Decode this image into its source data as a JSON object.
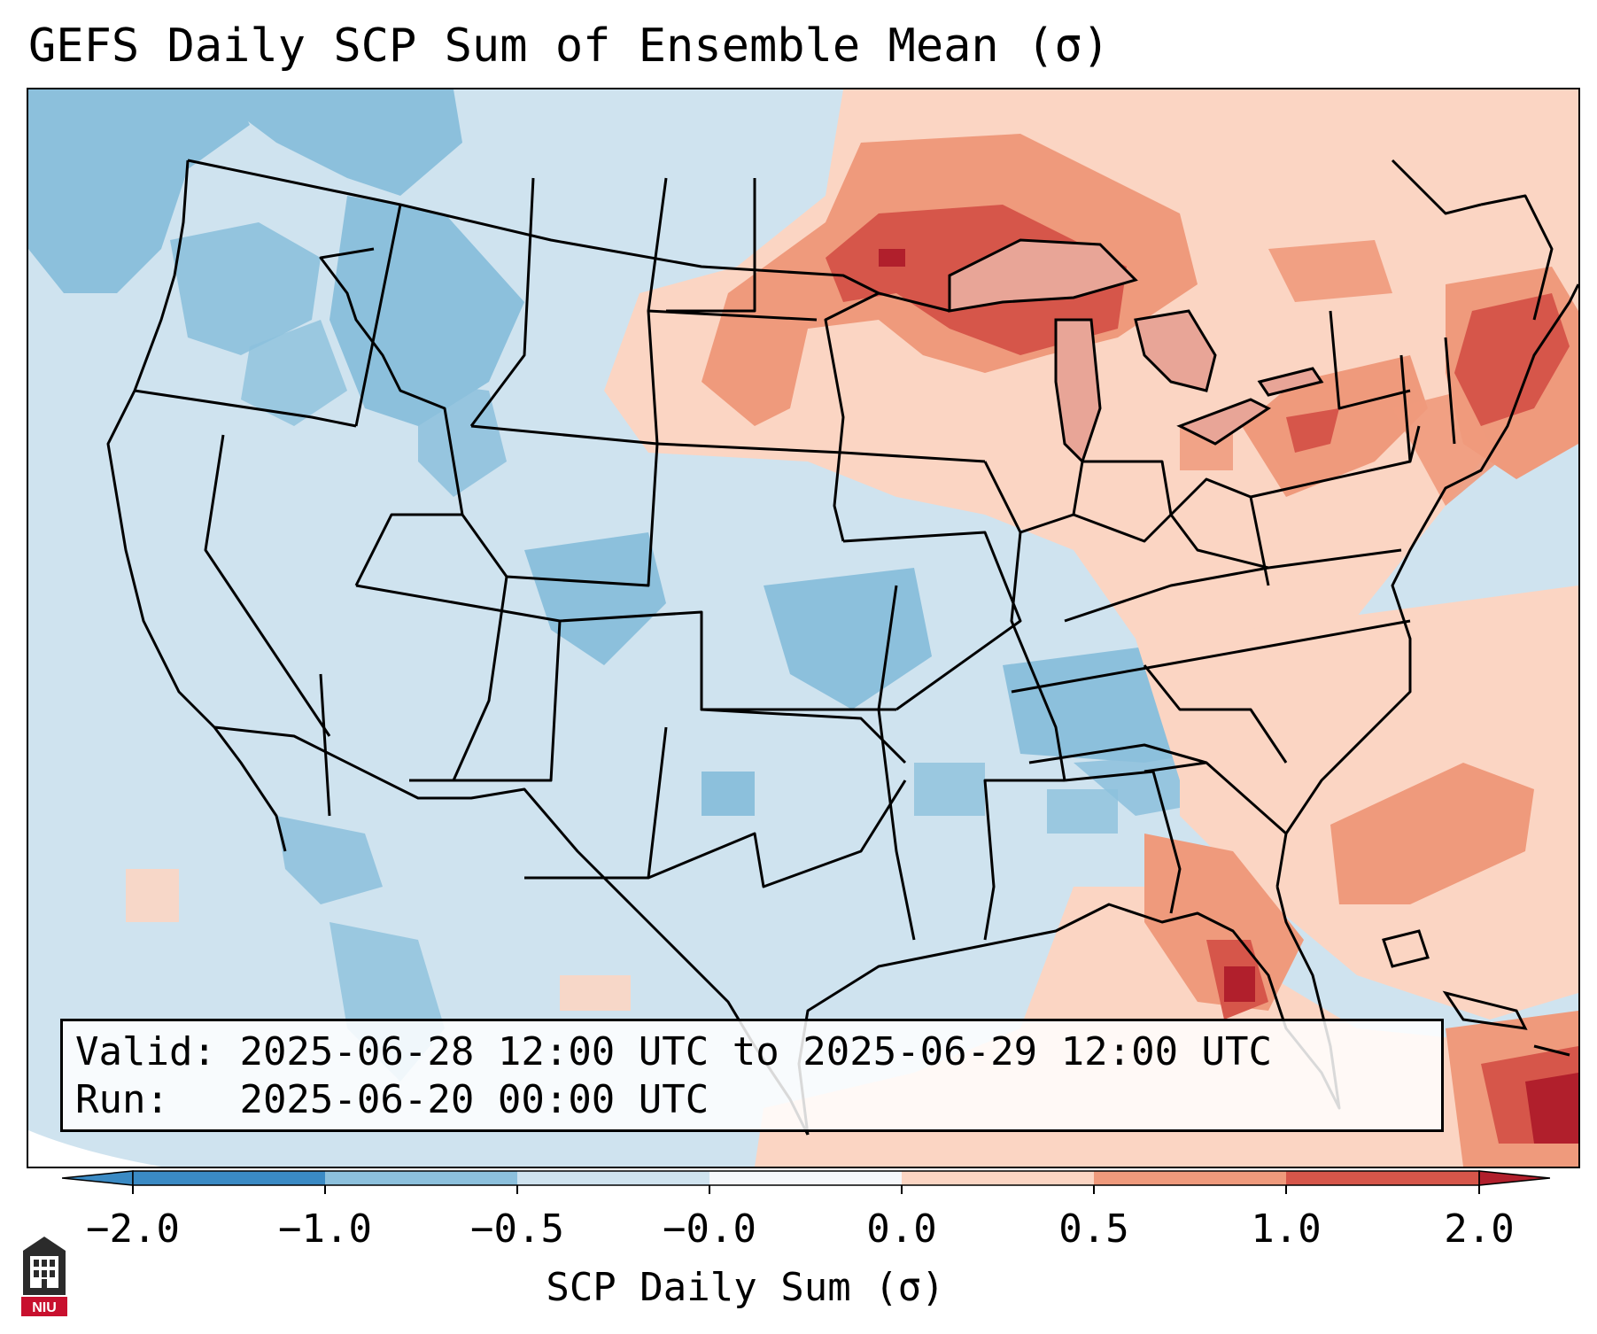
{
  "title": "GEFS Daily SCP Sum of Ensemble Mean (σ)",
  "info": {
    "valid_label": "Valid:",
    "valid_value": "2025-06-28 12:00 UTC to 2025-06-29 12:00 UTC",
    "run_label": "Run:",
    "run_value": "2025-06-20 00:00 UTC"
  },
  "colorbar": {
    "label": "SCP Daily Sum (σ)",
    "ticks": [
      "−2.0",
      "−1.0",
      "−0.5",
      "−0.0",
      "0.0",
      "0.5",
      "1.0",
      "2.0"
    ],
    "colors": [
      "#3a8ac4",
      "#8cc0dc",
      "#cfe3ef",
      "#f5f7fa",
      "#fbd5c3",
      "#ef9a7c",
      "#d6564a",
      "#b11f2c"
    ]
  },
  "map": {
    "background_color": "#cfe3ef",
    "outside_color": "#ffffff"
  },
  "logo": {
    "text": "NIU"
  }
}
